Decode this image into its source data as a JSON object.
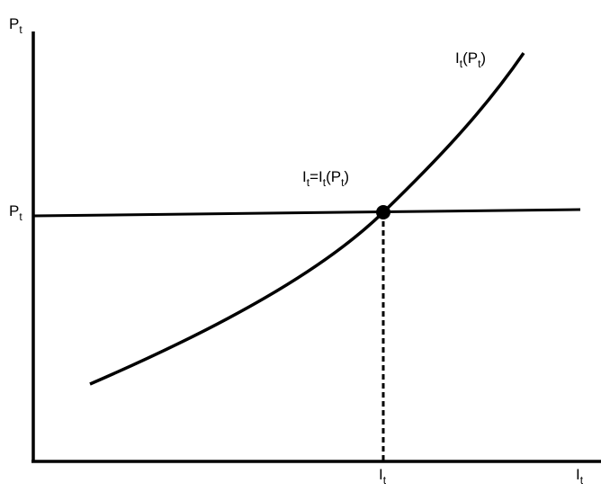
{
  "y_axis_label": [
    {
      "text": "P",
      "sub": false
    },
    {
      "text": "t",
      "sub": true
    }
  ],
  "x_axis_label": [
    {
      "text": "I",
      "sub": false
    },
    {
      "text": "t",
      "sub": true
    }
  ],
  "price_level_label": [
    {
      "text": "P",
      "sub": false
    },
    {
      "text": "t",
      "sub": true
    }
  ],
  "equilibrium_quantity_label": [
    {
      "text": "I",
      "sub": false
    },
    {
      "text": "t",
      "sub": true
    }
  ],
  "curve_label": [
    {
      "text": "I",
      "sub": false
    },
    {
      "text": "t",
      "sub": true
    },
    {
      "text": "(P",
      "sub": false
    },
    {
      "text": "t",
      "sub": true
    },
    {
      "text": ")",
      "sub": false
    }
  ],
  "equilibrium_label": [
    {
      "text": "I",
      "sub": false
    },
    {
      "text": "t",
      "sub": true
    },
    {
      "text": "=I",
      "sub": false
    },
    {
      "text": "t",
      "sub": true
    },
    {
      "text": "(P",
      "sub": false
    },
    {
      "text": "t",
      "sub": true
    },
    {
      "text": ")",
      "sub": false
    }
  ]
}
